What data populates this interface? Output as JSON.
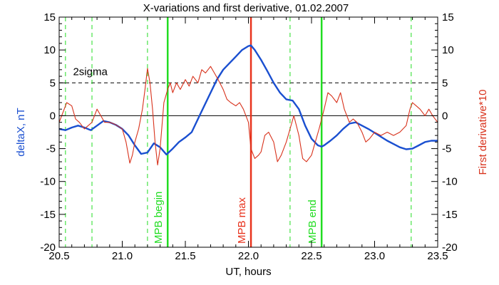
{
  "chart_data": {
    "type": "line",
    "title": "X-variations and first derivative, 01.02.2007",
    "xlabel": "UT, hours",
    "ylabel_left": "deltaX, nT",
    "ylabel_right": "First derivative*10",
    "xlim": [
      20.5,
      23.5
    ],
    "ylim": [
      -20,
      15
    ],
    "x_ticks": [
      20.5,
      21.0,
      21.5,
      22.0,
      22.5,
      23.0,
      23.5
    ],
    "x_tick_labels": [
      "20.5",
      "21.0",
      "21.5",
      "22.0",
      "22.5",
      "23.0",
      "23.5"
    ],
    "y_ticks": [
      -20,
      -15,
      -10,
      -5,
      0,
      5,
      10,
      15
    ],
    "y_tick_labels": [
      "-20",
      "-15",
      "-10",
      "-5",
      "0",
      "5",
      "10",
      "15"
    ],
    "colors": {
      "deltaX": "#1a4fd0",
      "derivative": "#d8321c",
      "mpb_boundary": "#22dd22",
      "mpb_max": "#e8321c",
      "reference": "#000000"
    },
    "series": [
      {
        "name": "deltaX, nT",
        "axis": "left",
        "x": [
          20.5,
          20.55,
          20.6,
          20.65,
          20.7,
          20.75,
          20.8,
          20.85,
          20.9,
          20.95,
          21.0,
          21.05,
          21.1,
          21.15,
          21.2,
          21.25,
          21.3,
          21.35,
          21.4,
          21.45,
          21.5,
          21.55,
          21.6,
          21.65,
          21.7,
          21.75,
          21.8,
          21.85,
          21.9,
          21.95,
          22.0,
          22.02,
          22.05,
          22.1,
          22.15,
          22.2,
          22.25,
          22.3,
          22.35,
          22.4,
          22.45,
          22.5,
          22.55,
          22.58,
          22.6,
          22.65,
          22.7,
          22.75,
          22.8,
          22.85,
          22.9,
          22.95,
          23.0,
          23.05,
          23.1,
          23.15,
          23.2,
          23.25,
          23.3,
          23.35,
          23.4,
          23.45,
          23.5
        ],
        "values": [
          -2.0,
          -2.2,
          -1.8,
          -1.5,
          -1.8,
          -2.2,
          -1.5,
          -0.8,
          -1.0,
          -1.4,
          -2.0,
          -3.0,
          -4.5,
          -5.8,
          -5.6,
          -4.2,
          -4.8,
          -5.9,
          -5.0,
          -4.0,
          -3.3,
          -2.5,
          -0.5,
          1.5,
          3.5,
          5.5,
          7.0,
          8.0,
          9.0,
          10.0,
          10.6,
          10.7,
          10.0,
          8.5,
          6.8,
          5.0,
          3.5,
          2.5,
          2.3,
          1.0,
          -1.5,
          -3.5,
          -4.5,
          -4.7,
          -4.5,
          -3.8,
          -3.0,
          -2.0,
          -1.2,
          -1.0,
          -1.5,
          -2.0,
          -2.6,
          -3.2,
          -3.8,
          -4.3,
          -4.8,
          -5.1,
          -5.0,
          -4.5,
          -4.0,
          -3.8,
          -3.8
        ]
      },
      {
        "name": "First derivative*10",
        "axis": "right",
        "x": [
          20.5,
          20.53,
          20.56,
          20.6,
          20.63,
          20.66,
          20.7,
          20.73,
          20.76,
          20.8,
          20.83,
          20.86,
          20.9,
          20.93,
          20.96,
          21.0,
          21.03,
          21.06,
          21.08,
          21.1,
          21.13,
          21.16,
          21.18,
          21.2,
          21.22,
          21.24,
          21.26,
          21.28,
          21.3,
          21.33,
          21.36,
          21.38,
          21.4,
          21.43,
          21.46,
          21.5,
          21.53,
          21.56,
          21.6,
          21.63,
          21.66,
          21.7,
          21.73,
          21.76,
          21.8,
          21.83,
          21.86,
          21.9,
          21.93,
          21.96,
          22.0,
          22.02,
          22.05,
          22.08,
          22.1,
          22.13,
          22.16,
          22.2,
          22.23,
          22.26,
          22.3,
          22.33,
          22.36,
          22.4,
          22.43,
          22.46,
          22.5,
          22.53,
          22.56,
          22.58,
          22.6,
          22.63,
          22.66,
          22.7,
          22.73,
          22.76,
          22.8,
          22.83,
          22.86,
          22.9,
          22.93,
          22.96,
          23.0,
          23.05,
          23.1,
          23.15,
          23.2,
          23.25,
          23.28,
          23.3,
          23.33,
          23.36,
          23.4,
          23.43,
          23.46,
          23.5
        ],
        "values": [
          -1.0,
          0.5,
          2.0,
          1.5,
          -0.5,
          -1.0,
          -2.0,
          -1.5,
          -1.0,
          1.0,
          0.0,
          -1.0,
          -1.0,
          -1.2,
          -1.5,
          -2.0,
          -4.0,
          -7.2,
          -6.0,
          -4.0,
          -2.0,
          1.0,
          4.0,
          7.2,
          5.0,
          1.0,
          -4.0,
          -7.5,
          -5.0,
          2.0,
          4.0,
          5.0,
          3.5,
          5.0,
          4.0,
          5.5,
          4.5,
          6.0,
          5.0,
          7.0,
          6.5,
          7.5,
          6.5,
          5.5,
          4.0,
          2.5,
          2.0,
          1.5,
          2.0,
          1.0,
          -1.0,
          -5.0,
          -6.5,
          -6.0,
          -5.5,
          -3.0,
          -2.5,
          -4.0,
          -7.0,
          -6.0,
          -4.0,
          -2.0,
          0.0,
          -3.0,
          -6.5,
          -7.0,
          -6.0,
          -4.0,
          -2.0,
          -0.5,
          1.0,
          3.5,
          3.0,
          2.0,
          3.5,
          1.0,
          -1.0,
          -0.5,
          -1.0,
          -2.5,
          -4.0,
          -3.5,
          -2.5,
          -3.0,
          -2.5,
          -3.0,
          -2.5,
          -1.5,
          1.0,
          2.0,
          1.5,
          1.0,
          0.0,
          1.0,
          0.0,
          -1.0
        ]
      }
    ],
    "reference_lines": [
      {
        "label": "2sigma",
        "y": 5,
        "style": "dashed"
      },
      {
        "label": "",
        "y": 0,
        "style": "solid"
      }
    ],
    "vertical_markers": [
      {
        "x": 20.55,
        "style": "dashed",
        "label": ""
      },
      {
        "x": 20.76,
        "style": "dashed",
        "label": ""
      },
      {
        "x": 21.2,
        "style": "dashed",
        "label": ""
      },
      {
        "x": 21.36,
        "style": "solid",
        "label": "MPB begin"
      },
      {
        "x": 22.02,
        "style": "solid-red",
        "label": "MPB max"
      },
      {
        "x": 22.33,
        "style": "dashed",
        "label": ""
      },
      {
        "x": 22.58,
        "style": "solid",
        "label": "MPB end"
      },
      {
        "x": 23.29,
        "style": "dashed",
        "label": ""
      }
    ],
    "grid": false
  }
}
